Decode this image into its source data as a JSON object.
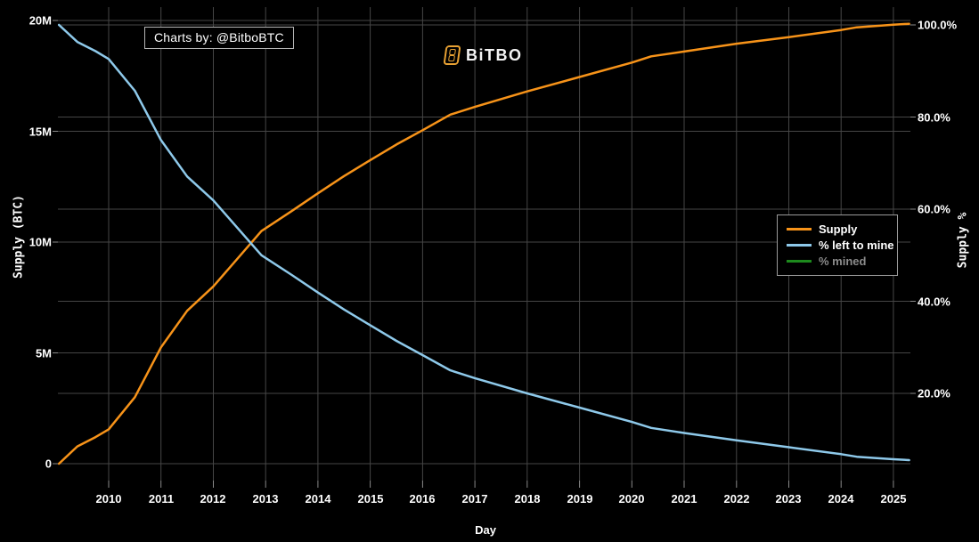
{
  "watermark": {
    "text": "Charts by: @BitboBTC"
  },
  "logo": {
    "text": "BiTBO",
    "icon": "bitbo-b-badge",
    "color": "#e8a133"
  },
  "colors": {
    "background": "#000000",
    "grid": "#464646",
    "tick_text": "#ffffff",
    "supply_line": "#f79319",
    "left_to_mine_line": "#8ec9ea",
    "mined_line": "#1d8a1d",
    "disabled_legend_text": "#8c8c8c"
  },
  "chart_data": {
    "type": "line",
    "xlabel": "Day",
    "x_range": [
      2009.03,
      2025.33
    ],
    "x_ticks": [
      2010,
      2011,
      2012,
      2013,
      2014,
      2015,
      2016,
      2017,
      2018,
      2019,
      2020,
      2021,
      2022,
      2023,
      2024,
      2025
    ],
    "left_axis": {
      "label": "Supply (BTC)",
      "range": [
        0,
        20
      ],
      "tick_values": [
        20,
        15,
        10,
        5,
        0
      ],
      "tick_labels": [
        "20M",
        "15M",
        "10M",
        "5M",
        "0"
      ]
    },
    "right_axis": {
      "label": "Supply %",
      "range": [
        0,
        100
      ],
      "tick_values": [
        100,
        80,
        60,
        40,
        20
      ],
      "tick_labels": [
        "100.0%",
        "80.0%",
        "60.0%",
        "40.0%",
        "20.0%"
      ]
    },
    "legend_position": "right-middle",
    "grid": true,
    "series": [
      {
        "name": "Supply",
        "axis": "left",
        "color": "#f79319",
        "visible": true,
        "points": [
          [
            2009.05,
            0
          ],
          [
            2009.4,
            0.78
          ],
          [
            2009.75,
            1.2
          ],
          [
            2010.0,
            1.55
          ],
          [
            2010.5,
            3.0
          ],
          [
            2011.0,
            5.25
          ],
          [
            2011.5,
            6.9
          ],
          [
            2012.0,
            8.0
          ],
          [
            2012.92,
            10.5
          ],
          [
            2013.5,
            11.4
          ],
          [
            2014.0,
            12.2
          ],
          [
            2014.5,
            12.98
          ],
          [
            2015.0,
            13.7
          ],
          [
            2015.5,
            14.4
          ],
          [
            2016.0,
            15.05
          ],
          [
            2016.53,
            15.75
          ],
          [
            2017.0,
            16.1
          ],
          [
            2018.0,
            16.8
          ],
          [
            2019.0,
            17.45
          ],
          [
            2020.0,
            18.1
          ],
          [
            2020.37,
            18.38
          ],
          [
            2021.0,
            18.6
          ],
          [
            2022.0,
            18.95
          ],
          [
            2023.0,
            19.25
          ],
          [
            2024.0,
            19.57
          ],
          [
            2024.3,
            19.69
          ],
          [
            2025.0,
            19.81
          ],
          [
            2025.3,
            19.85
          ]
        ]
      },
      {
        "name": "% left to mine",
        "axis": "right",
        "color": "#8ec9ea",
        "visible": true,
        "points": [
          [
            2009.05,
            100
          ],
          [
            2009.4,
            96.3
          ],
          [
            2009.75,
            94.3
          ],
          [
            2010.0,
            92.6
          ],
          [
            2010.5,
            85.7
          ],
          [
            2011.0,
            75.0
          ],
          [
            2011.5,
            67.1
          ],
          [
            2012.0,
            61.9
          ],
          [
            2012.92,
            50.0
          ],
          [
            2013.5,
            45.7
          ],
          [
            2014.0,
            41.9
          ],
          [
            2014.5,
            38.2
          ],
          [
            2015.0,
            34.8
          ],
          [
            2015.5,
            31.4
          ],
          [
            2016.0,
            28.3
          ],
          [
            2016.53,
            25.0
          ],
          [
            2017.0,
            23.3
          ],
          [
            2018.0,
            20.0
          ],
          [
            2019.0,
            16.9
          ],
          [
            2020.0,
            13.8
          ],
          [
            2020.37,
            12.5
          ],
          [
            2021.0,
            11.4
          ],
          [
            2022.0,
            9.8
          ],
          [
            2023.0,
            8.3
          ],
          [
            2024.0,
            6.8
          ],
          [
            2024.3,
            6.25
          ],
          [
            2025.0,
            5.7
          ],
          [
            2025.3,
            5.5
          ]
        ]
      },
      {
        "name": "% mined",
        "axis": "right",
        "color": "#1d8a1d",
        "visible": false,
        "points": []
      }
    ]
  }
}
